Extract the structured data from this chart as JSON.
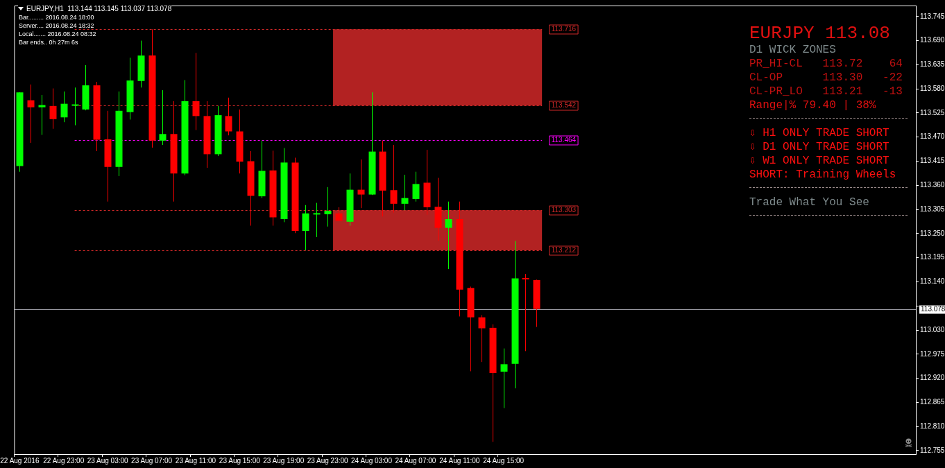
{
  "chart_data": {
    "type": "candlestick",
    "title": "EURJPY,H1  113.144 113.145 113.037 113.078",
    "categories": [
      "22 Aug 2016",
      null,
      null,
      null,
      "22 Aug 23:00",
      null,
      null,
      null,
      "23 Aug 03:00",
      null,
      null,
      null,
      "23 Aug 07:00",
      null,
      null,
      null,
      "23 Aug 11:00",
      null,
      null,
      null,
      "23 Aug 15:00",
      null,
      null,
      null,
      "23 Aug 19:00",
      null,
      null,
      null,
      "23 Aug 23:00",
      null,
      null,
      null,
      "24 Aug 03:00",
      null,
      null,
      null,
      "24 Aug 07:00",
      null,
      null,
      null,
      "24 Aug 11:00",
      null,
      null,
      null,
      "24 Aug 15:00",
      null,
      null,
      null,
      null,
      null,
      null,
      null,
      null,
      null,
      null,
      null,
      null,
      null,
      null,
      null,
      null,
      null,
      null,
      null,
      null,
      null,
      null,
      null,
      null,
      null,
      null,
      null,
      null,
      null,
      null,
      null,
      null,
      null,
      null,
      null,
      null,
      null
    ],
    "ohlc": [
      [
        113.404,
        113.572,
        113.391,
        113.572
      ],
      [
        113.554,
        113.59,
        113.457,
        113.538
      ],
      [
        113.538,
        113.566,
        113.475,
        113.543
      ],
      [
        113.541,
        113.581,
        113.489,
        113.511
      ],
      [
        113.515,
        113.574,
        113.504,
        113.546
      ],
      [
        113.541,
        113.583,
        113.497,
        113.543
      ],
      [
        113.533,
        113.634,
        113.531,
        113.588
      ],
      [
        113.588,
        113.596,
        113.438,
        113.464
      ],
      [
        113.465,
        113.53,
        113.323,
        113.402
      ],
      [
        113.402,
        113.574,
        113.381,
        113.53
      ],
      [
        113.527,
        113.651,
        113.51,
        113.599
      ],
      [
        113.598,
        113.69,
        113.583,
        113.656
      ],
      [
        113.656,
        113.716,
        113.446,
        113.462
      ],
      [
        113.462,
        113.577,
        113.452,
        113.477
      ],
      [
        113.477,
        113.552,
        113.323,
        113.387
      ],
      [
        113.387,
        113.6,
        113.383,
        113.552
      ],
      [
        113.552,
        113.662,
        113.486,
        113.518
      ],
      [
        113.518,
        113.552,
        113.4,
        113.431
      ],
      [
        113.431,
        113.541,
        113.427,
        113.52
      ],
      [
        113.518,
        113.56,
        113.474,
        113.483
      ],
      [
        113.483,
        113.533,
        113.387,
        113.414
      ],
      [
        113.415,
        113.438,
        113.268,
        113.336
      ],
      [
        113.335,
        113.462,
        113.331,
        113.393
      ],
      [
        113.394,
        113.439,
        113.268,
        113.287
      ],
      [
        113.283,
        113.445,
        113.276,
        113.412
      ],
      [
        113.412,
        113.423,
        113.251,
        113.256
      ],
      [
        113.256,
        113.315,
        113.212,
        113.296
      ],
      [
        113.292,
        113.32,
        113.242,
        113.295
      ],
      [
        113.294,
        113.356,
        113.266,
        113.302
      ],
      [
        113.296,
        113.31,
        113.279,
        113.279
      ],
      [
        113.277,
        113.387,
        113.268,
        113.35
      ],
      [
        113.35,
        113.419,
        113.308,
        113.339
      ],
      [
        113.339,
        113.572,
        113.338,
        113.437
      ],
      [
        113.437,
        113.462,
        113.289,
        113.348
      ],
      [
        113.349,
        113.452,
        113.298,
        113.318
      ],
      [
        113.318,
        113.384,
        113.303,
        113.331
      ],
      [
        113.329,
        113.391,
        113.323,
        113.363
      ],
      [
        113.366,
        113.441,
        113.293,
        113.31
      ],
      [
        113.311,
        113.377,
        113.234,
        113.263
      ],
      [
        113.263,
        113.323,
        113.169,
        113.283
      ],
      [
        113.283,
        113.323,
        113.061,
        113.122
      ],
      [
        113.126,
        113.129,
        112.936,
        113.059
      ],
      [
        113.059,
        113.064,
        112.957,
        113.034
      ],
      [
        113.035,
        113.043,
        112.775,
        112.932
      ],
      [
        112.935,
        112.988,
        112.852,
        112.952
      ],
      [
        112.953,
        113.233,
        112.897,
        113.148
      ],
      [
        113.147,
        113.158,
        112.982,
        113.145
      ],
      [
        113.144,
        113.145,
        113.037,
        113.078
      ],
      null,
      null,
      null,
      null,
      null,
      null,
      null,
      null,
      null,
      null,
      null,
      null,
      null,
      null,
      null,
      null,
      null,
      null,
      null,
      null,
      null,
      null,
      null,
      null,
      null,
      null,
      null,
      null,
      null,
      null,
      null,
      null,
      null,
      null
    ],
    "colors": [
      "#00ff00",
      "#ff0000",
      "#00ff00",
      "#ff0000",
      "#00ff00",
      "#00ff00",
      "#00ff00",
      "#ff0000",
      "#ff0000",
      "#00ff00",
      "#00ff00",
      "#00ff00",
      "#ff0000",
      "#00ff00",
      "#ff0000",
      "#00ff00",
      "#ff0000",
      "#ff0000",
      "#00ff00",
      "#ff0000",
      "#ff0000",
      "#ff0000",
      "#00ff00",
      "#ff0000",
      "#00ff00",
      "#ff0000",
      "#00ff00",
      "#00ff00",
      "#00ff00",
      "#ff0000",
      "#00ff00",
      "#ff0000",
      "#00ff00",
      "#ff0000",
      "#ff0000",
      "#00ff00",
      "#00ff00",
      "#ff0000",
      "#ff0000",
      "#00ff00",
      "#ff0000",
      "#ff0000",
      "#ff0000",
      "#ff0000",
      "#00ff00",
      "#00ff00",
      "#ff0000",
      "#ff0000",
      null,
      null,
      null,
      null,
      null,
      null,
      null,
      null,
      null,
      null,
      null,
      null,
      null,
      null,
      null,
      null,
      null,
      null,
      null,
      null,
      null,
      null,
      null,
      null,
      null,
      null,
      null,
      null,
      null,
      null,
      null,
      null,
      null,
      null
    ],
    "ylim": [
      112.747,
      113.77
    ],
    "yticks": [
      {
        "value": 113.745,
        "label": "113.745"
      },
      {
        "value": 113.69,
        "label": "113.690"
      },
      {
        "value": 113.635,
        "label": "113.635"
      },
      {
        "value": 113.58,
        "label": "113.580"
      },
      {
        "value": 113.525,
        "label": "113.525"
      },
      {
        "value": 113.47,
        "label": "113.470"
      },
      {
        "value": 113.415,
        "label": "113.415"
      },
      {
        "value": 113.36,
        "label": "113.360"
      },
      {
        "value": 113.305,
        "label": "113.305"
      },
      {
        "value": 113.25,
        "label": "113.250"
      },
      {
        "value": 113.195,
        "label": "113.195"
      },
      {
        "value": 113.14,
        "label": "113.140"
      },
      {
        "value": 113.085,
        "label": null
      },
      {
        "value": 113.03,
        "label": "113.030"
      },
      {
        "value": 112.975,
        "label": "112.975"
      },
      {
        "value": 112.92,
        "label": "112.920"
      },
      {
        "value": 112.865,
        "label": "112.865"
      },
      {
        "value": 112.81,
        "label": "112.810"
      },
      {
        "value": 112.755,
        "label": "112.755"
      }
    ],
    "bands": [
      {
        "axis": "y",
        "from": 113.542,
        "to": 113.716,
        "color": "#b22222"
      },
      {
        "axis": "y",
        "from": 113.212,
        "to": 113.303,
        "color": "#b22222"
      }
    ],
    "ref_lines": [
      {
        "axis": "y",
        "value": 113.716,
        "label": "113.716",
        "color": "#d02828",
        "line_style": "dashed"
      },
      {
        "axis": "y",
        "value": 113.542,
        "label": "113.542",
        "color": "#d02828",
        "line_style": "dashed"
      },
      {
        "axis": "y",
        "value": 113.464,
        "label": "113.464",
        "color": "#ff00ff",
        "line_style": "dashed"
      },
      {
        "axis": "y",
        "value": 113.303,
        "label": "113.303",
        "color": "#d02828",
        "line_style": "dashed"
      },
      {
        "axis": "y",
        "value": 113.212,
        "label": "113.212",
        "color": "#d02828",
        "line_style": "dashed"
      },
      {
        "axis": "y",
        "value": 113.078,
        "label": "113.078",
        "color": "#9a9aa2",
        "line_style": "solid"
      }
    ],
    "annotations": [
      "Bar......... 2016.08.24 18:00",
      "Server.... 2016.08.24 18:32",
      "Local....... 2016.08.24 08:32",
      "Bar ends.. 0h 27m 6s",
      "EURJPY 113.08",
      "D1 WICK ZONES",
      "PR_HI-CL   113.72    64",
      "CL-OP      113.30   -22",
      "CL-PR_LO   113.21   -13",
      "Range|% 79.40 | 38%",
      "⇩ H1 ONLY TRADE SHORT",
      "⇩ D1 ONLY TRADE SHORT",
      "⇩ W1 ONLY TRADE SHORT",
      "SHORT: Training Wheels",
      "Trade What You See"
    ]
  }
}
